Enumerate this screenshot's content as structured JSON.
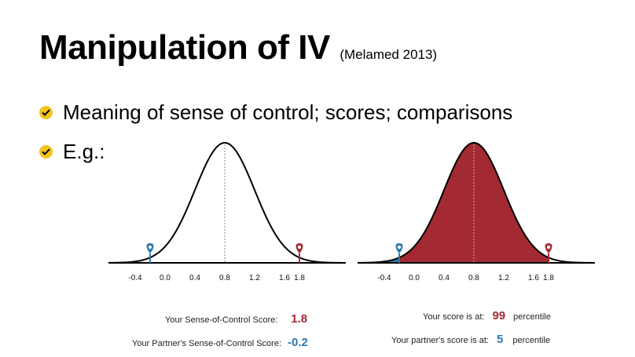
{
  "slide": {
    "title": "Manipulation of IV",
    "subtitle": "(Melamed 2013)",
    "bullets": [
      "Meaning of sense of control; scores; comparisons",
      "E.g.:"
    ]
  },
  "colors": {
    "accent_yellow": "#f2c21b",
    "self_red": "#a32a32",
    "partner_blue": "#2a79b0"
  },
  "charts": {
    "tick_labels": [
      "-0.4",
      "0.0",
      "0.4",
      "0.8",
      "1.2",
      "1.6",
      "1.8"
    ],
    "left": {
      "your_score_label": "Your Sense-of-Control Score:",
      "your_score": "1.8",
      "partner_score_label": "Your Partner's Sense-of-Control Score:",
      "partner_score": "-0.2"
    },
    "right": {
      "your_pct_label": "Your score is at:",
      "your_pct": "99",
      "your_pct_suffix": "percentile",
      "partner_pct_label": "Your partner's score is at:",
      "partner_pct": "5",
      "partner_pct_suffix": "percentile"
    }
  },
  "chart_data": [
    {
      "type": "area",
      "title": "",
      "distribution": "normal",
      "mean": 0.8,
      "x_ticks": [
        -0.4,
        0.0,
        0.4,
        0.8,
        1.2,
        1.6,
        1.8
      ],
      "markers": [
        {
          "x": -0.2,
          "color": "#2a79b0"
        },
        {
          "x": 1.8,
          "color": "#a32a32"
        }
      ],
      "shaded": "none"
    },
    {
      "type": "area",
      "title": "",
      "distribution": "normal",
      "mean": 0.8,
      "x_ticks": [
        -0.4,
        0.0,
        0.4,
        0.8,
        1.2,
        1.6,
        1.8
      ],
      "markers": [
        {
          "x": -0.2,
          "color": "#2a79b0"
        },
        {
          "x": 1.8,
          "color": "#a32a32"
        }
      ],
      "shaded": "below-markers",
      "percentiles": {
        "self": 99,
        "partner": 5
      }
    }
  ]
}
